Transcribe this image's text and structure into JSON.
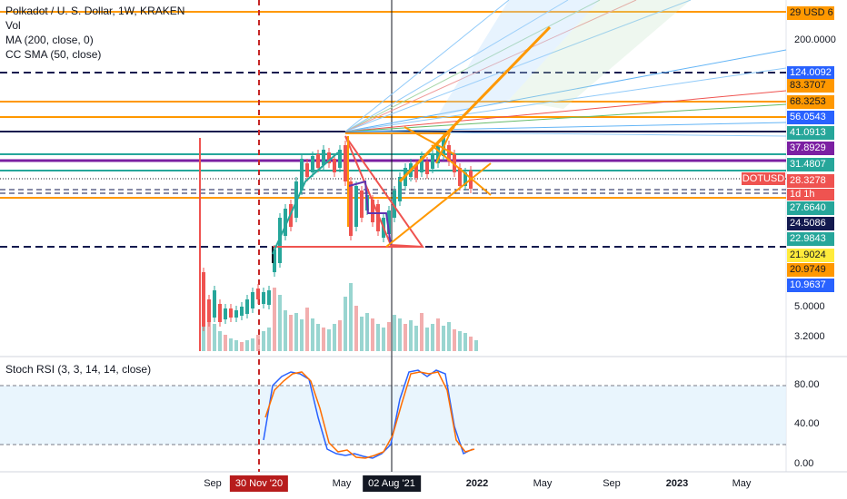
{
  "legend": {
    "symbol_line": "Polkadot / U. S. Dollar, 1W, KRAKEN",
    "vol": "Vol",
    "ma": "MA (200, close, 0)",
    "ccsma": "CC SMA (50, close)"
  },
  "top_tag": {
    "label": "29 USD 6"
  },
  "price_axis_labels": [
    {
      "text": "200.0000"
    },
    {
      "text": "5.0000"
    },
    {
      "text": "3.2000"
    }
  ],
  "price_tags": [
    {
      "text": "124.0092",
      "color": "#2962ff",
      "dark": false
    },
    {
      "text": "83.3707",
      "color": "#ff9800",
      "dark": true
    },
    {
      "text": "68.3253",
      "color": "#ff9800",
      "dark": true
    },
    {
      "text": "56.0543",
      "color": "#2962ff",
      "dark": false
    },
    {
      "text": "41.0913",
      "color": "#26a69a",
      "dark": false
    },
    {
      "text": "37.8929",
      "color": "#7b1fa2",
      "dark": false
    },
    {
      "text": "31.4807",
      "color": "#26a69a",
      "dark": false
    },
    {
      "text": "28.3278",
      "color": "#ef5350",
      "dark": false
    },
    {
      "text": "27.6640",
      "color": "#26a69a",
      "dark": false
    },
    {
      "text": "24.5086",
      "color": "#131a4f",
      "dark": false
    },
    {
      "text": "22.9843",
      "color": "#26a69a",
      "dark": false
    },
    {
      "text": "21.9024",
      "color": "#ffeb3b",
      "dark": true
    },
    {
      "text": "20.9749",
      "color": "#ff9800",
      "dark": true
    },
    {
      "text": "10.9637",
      "color": "#2962ff",
      "dark": false
    }
  ],
  "symbol_badge": "DOTUSD",
  "countdown": "1d 1h",
  "stoch": {
    "title": "Stoch RSI (3, 3, 14, 14, close)",
    "axis_labels": [
      "80.00",
      "40.00",
      "0.00"
    ]
  },
  "time_axis": [
    {
      "text": "Sep",
      "highlight": false
    },
    {
      "text": "30 Nov '20",
      "highlight": true,
      "bg": "#b71c1c"
    },
    {
      "text": "May",
      "highlight": false
    },
    {
      "text": "02 Aug '21",
      "highlight": true,
      "bg": "#131722"
    },
    {
      "text": "2022",
      "highlight": false,
      "bold": true
    },
    {
      "text": "May",
      "highlight": false
    },
    {
      "text": "Sep",
      "highlight": false
    },
    {
      "text": "2023",
      "highlight": false,
      "bold": true
    },
    {
      "text": "May",
      "highlight": false
    }
  ],
  "colors": {
    "orange": "#ff9800",
    "blue": "#2962ff",
    "teal": "#26a69a",
    "red": "#ef5350",
    "purple": "#7b1fa2",
    "navy": "#131a4f",
    "up": "#26a69a",
    "down": "#ef5350"
  }
}
